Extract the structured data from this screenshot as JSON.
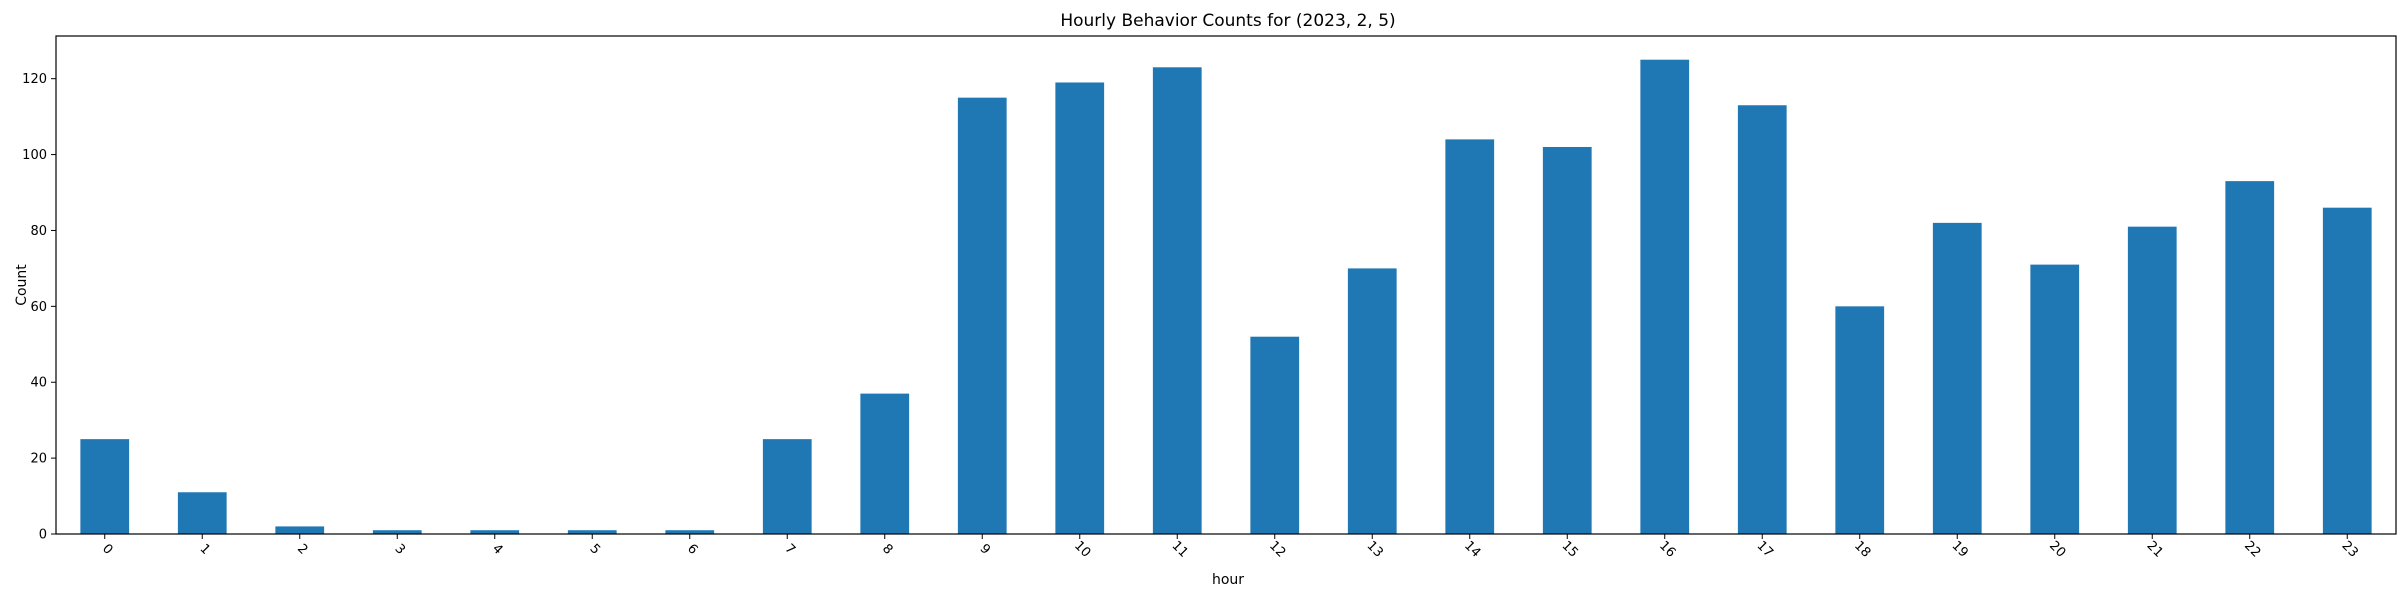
{
  "chart_data": {
    "type": "bar",
    "title": "Hourly Behavior Counts for (2023, 2, 5)",
    "xlabel": "hour",
    "ylabel": "Count",
    "categories": [
      "0",
      "1",
      "2",
      "3",
      "4",
      "5",
      "6",
      "7",
      "8",
      "9",
      "10",
      "11",
      "12",
      "13",
      "14",
      "15",
      "16",
      "17",
      "18",
      "19",
      "20",
      "21",
      "22",
      "23"
    ],
    "values": [
      25,
      11,
      2,
      1,
      1,
      1,
      1,
      25,
      37,
      115,
      119,
      123,
      52,
      70,
      104,
      102,
      125,
      113,
      60,
      82,
      71,
      81,
      93,
      86
    ],
    "ylim": [
      0,
      131.25
    ],
    "yticks": [
      0,
      20,
      40,
      60,
      80,
      100,
      120
    ],
    "bar_color": "#1f77b4",
    "grid": false,
    "xtick_rotation_deg": 45
  }
}
